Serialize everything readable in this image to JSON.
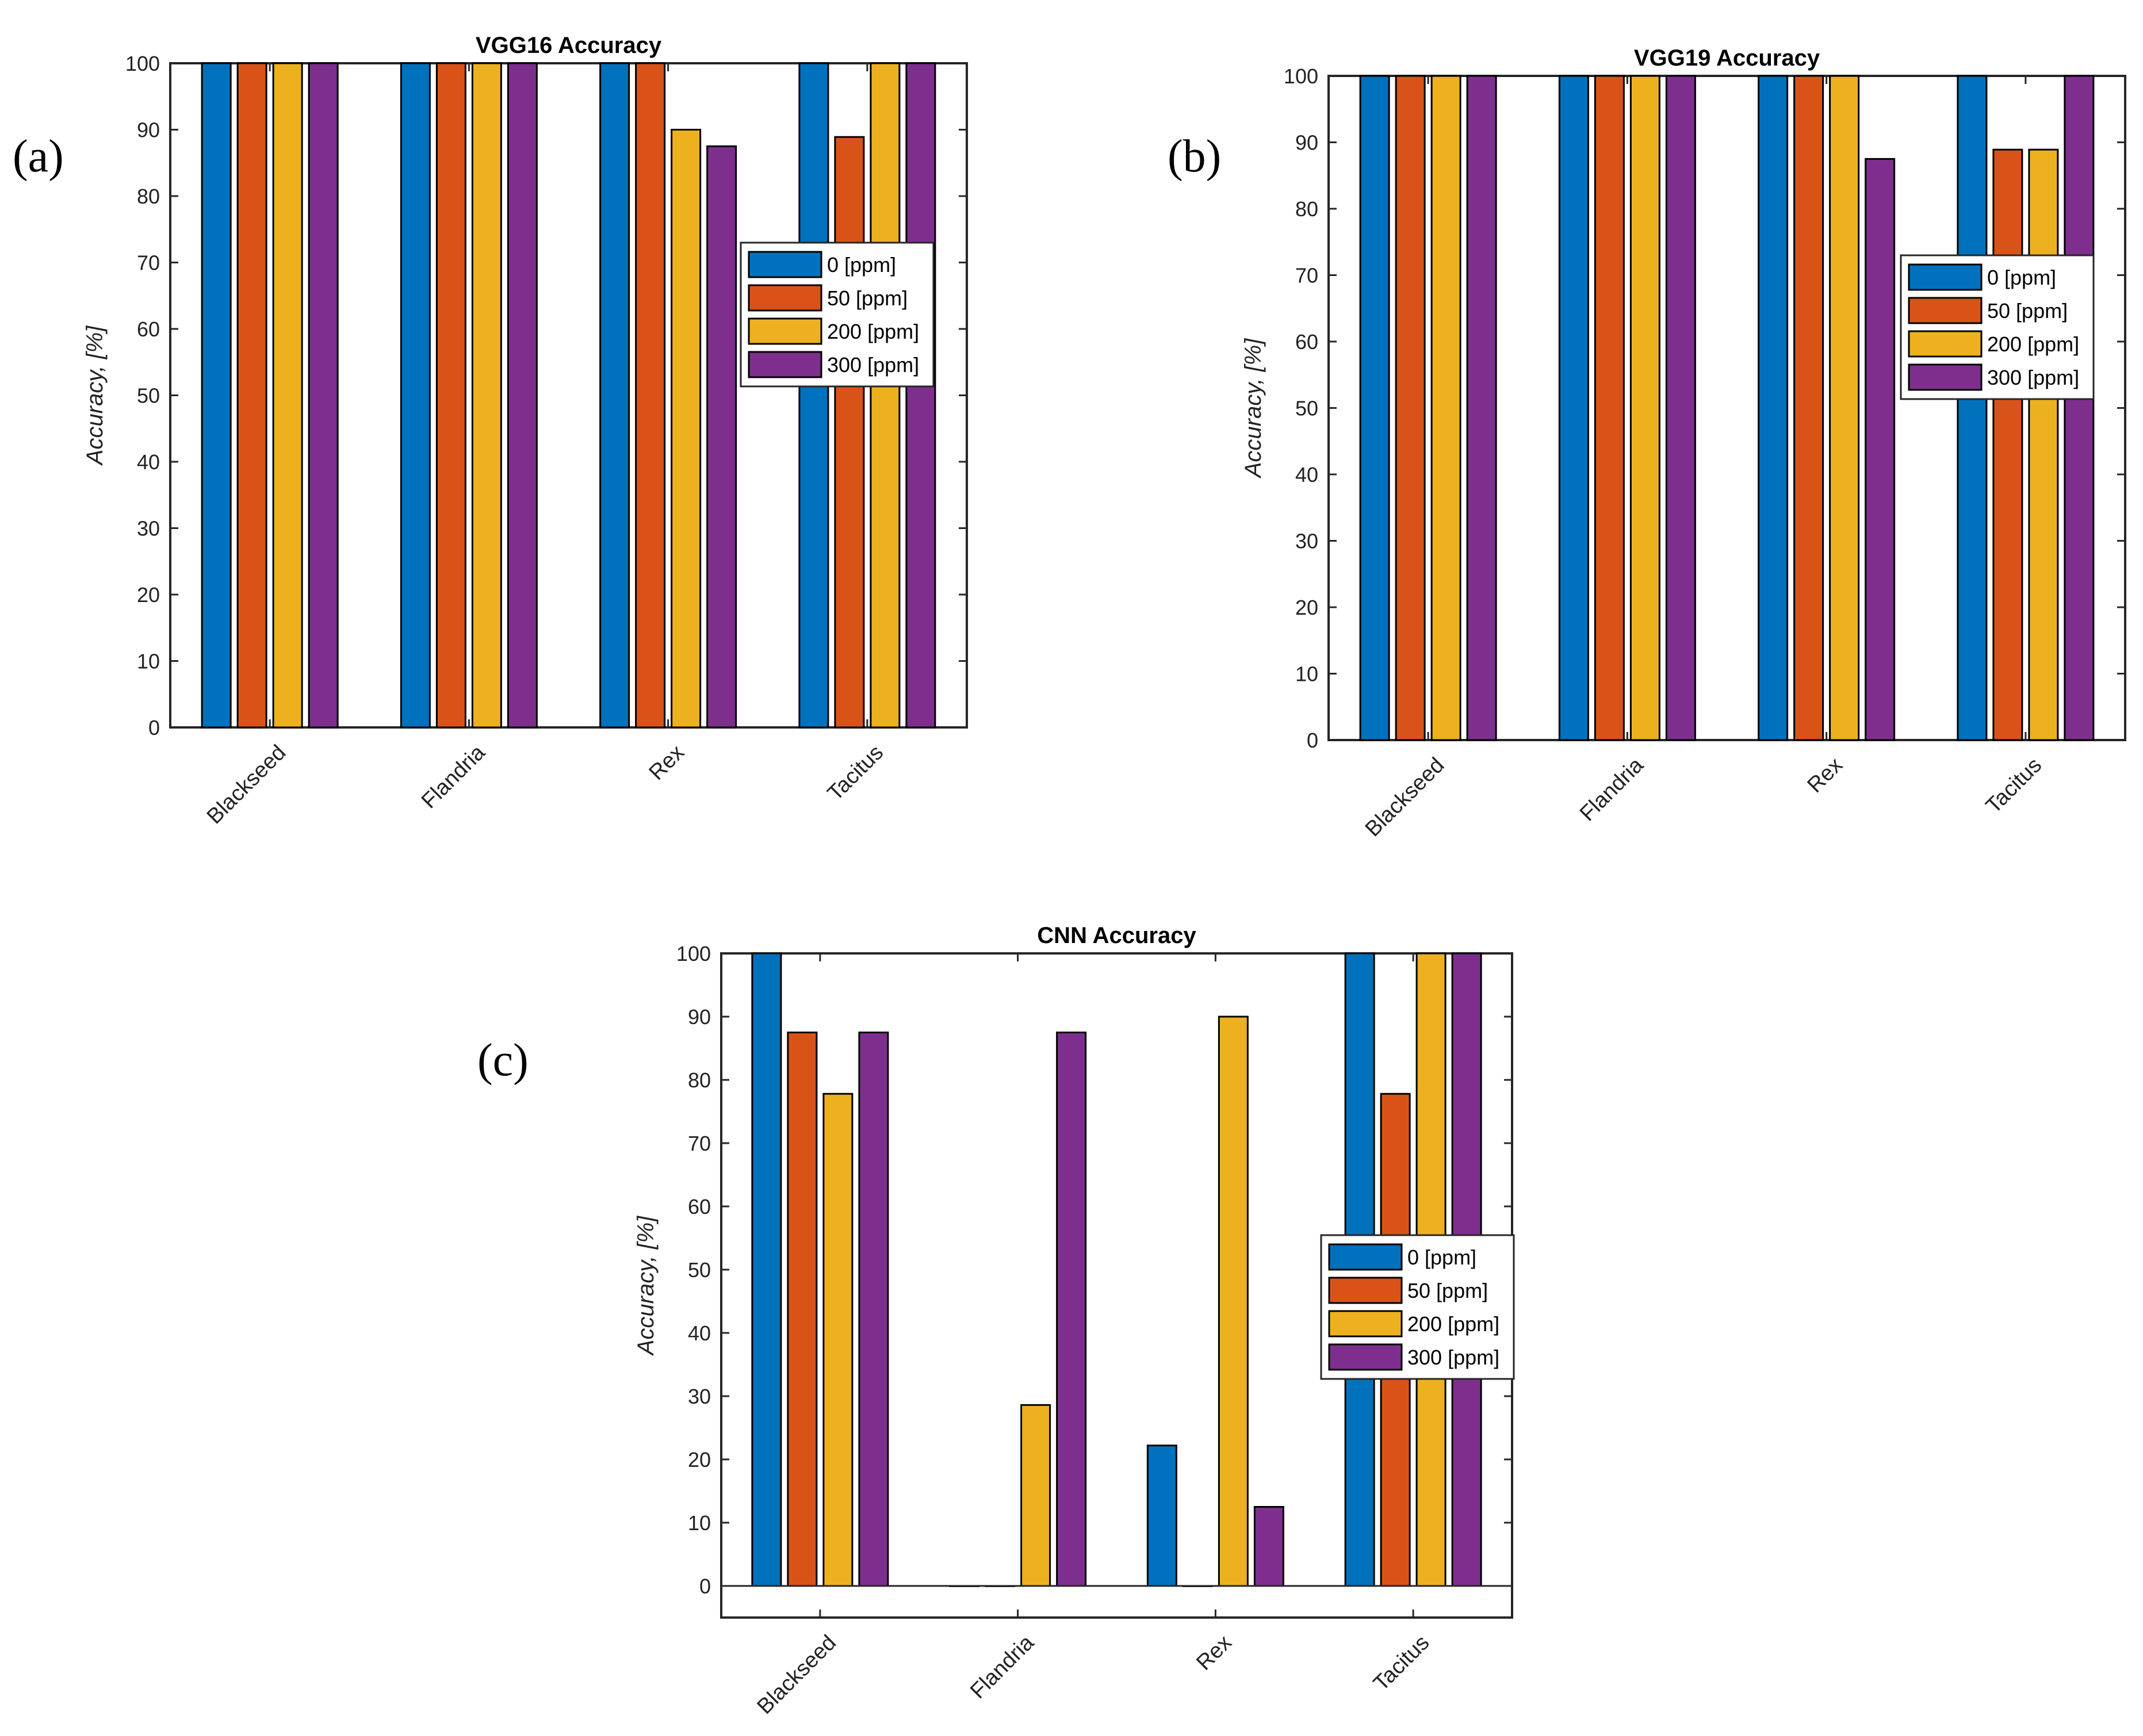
{
  "colors": {
    "s0": "#0072BD",
    "s1": "#D95319",
    "s2": "#EDB120",
    "s3": "#7E2F8E"
  },
  "legend_labels": [
    "0 [ppm]",
    "50 [ppm]",
    "200 [ppm]",
    "300 [ppm]"
  ],
  "panel_labels": [
    "(a)",
    "(b)",
    "(c)"
  ],
  "chart_data": [
    {
      "type": "bar",
      "title": "VGG16 Accuracy",
      "panel": "(a)",
      "categories": [
        "Blackseed",
        "Flandria",
        "Rex",
        "Tacitus"
      ],
      "ylabel": "Accuracy, [%]",
      "xlabel": "",
      "ylim": [
        0,
        100
      ],
      "yticks": [
        0,
        10,
        20,
        30,
        40,
        50,
        60,
        70,
        80,
        90,
        100
      ],
      "legend_position": "right",
      "series": [
        {
          "name": "0 [ppm]",
          "values": [
            100,
            100,
            100,
            100
          ]
        },
        {
          "name": "50 [ppm]",
          "values": [
            100,
            100,
            100,
            88.9
          ]
        },
        {
          "name": "200 [ppm]",
          "values": [
            100,
            100,
            90,
            100
          ]
        },
        {
          "name": "300 [ppm]",
          "values": [
            100,
            100,
            87.5,
            100
          ]
        }
      ]
    },
    {
      "type": "bar",
      "title": "VGG19 Accuracy",
      "panel": "(b)",
      "categories": [
        "Blackseed",
        "Flandria",
        "Rex",
        "Tacitus"
      ],
      "ylabel": "Accuracy, [%]",
      "xlabel": "",
      "ylim": [
        0,
        100
      ],
      "yticks": [
        0,
        10,
        20,
        30,
        40,
        50,
        60,
        70,
        80,
        90,
        100
      ],
      "legend_position": "right",
      "series": [
        {
          "name": "0 [ppm]",
          "values": [
            100,
            100,
            100,
            100
          ]
        },
        {
          "name": "50 [ppm]",
          "values": [
            100,
            100,
            100,
            88.9
          ]
        },
        {
          "name": "200 [ppm]",
          "values": [
            100,
            100,
            100,
            88.9
          ]
        },
        {
          "name": "300 [ppm]",
          "values": [
            100,
            100,
            87.5,
            100
          ]
        }
      ]
    },
    {
      "type": "bar",
      "title": "CNN Accuracy",
      "panel": "(c)",
      "categories": [
        "Blackseed",
        "Flandria",
        "Rex",
        "Tacitus"
      ],
      "ylabel": "Accuracy, [%]",
      "xlabel": "",
      "ylim": [
        -5,
        100
      ],
      "yticks": [
        0,
        10,
        20,
        30,
        40,
        50,
        60,
        70,
        80,
        90,
        100
      ],
      "legend_position": "right",
      "series": [
        {
          "name": "0 [ppm]",
          "values": [
            100,
            0,
            22.2,
            100
          ]
        },
        {
          "name": "50 [ppm]",
          "values": [
            87.5,
            0,
            0,
            77.8
          ]
        },
        {
          "name": "200 [ppm]",
          "values": [
            77.8,
            28.6,
            90,
            100
          ]
        },
        {
          "name": "300 [ppm]",
          "values": [
            87.5,
            87.5,
            12.5,
            100
          ]
        }
      ]
    }
  ]
}
